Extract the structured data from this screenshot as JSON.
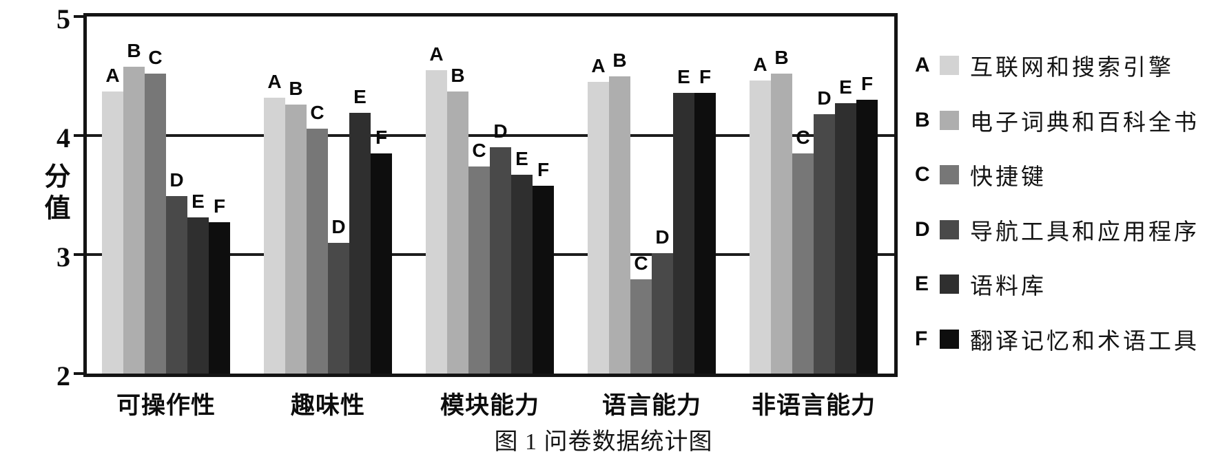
{
  "figure": {
    "caption": "图 1 问卷数据统计图"
  },
  "chart_data": {
    "type": "bar",
    "title": "",
    "xlabel": "",
    "ylabel": "分值",
    "ylim": [
      2,
      5
    ],
    "y_ticks": [
      5,
      4,
      3,
      2
    ],
    "gridlines_at": [
      4,
      3
    ],
    "grid": true,
    "legend_position": "right",
    "categories": [
      "可操作性",
      "趣味性",
      "模块能力",
      "语言能力",
      "非语言能力"
    ],
    "series": [
      {
        "key": "A",
        "name": "互联网和搜索引擎",
        "color": "#d3d3d3",
        "values": [
          4.37,
          4.32,
          4.55,
          4.45,
          4.46
        ]
      },
      {
        "key": "B",
        "name": "电子词典和百科全书",
        "color": "#aeaeae",
        "values": [
          4.58,
          4.26,
          4.37,
          4.5,
          4.52
        ]
      },
      {
        "key": "C",
        "name": "快捷键",
        "color": "#777777",
        "values": [
          4.52,
          4.06,
          3.74,
          2.79,
          3.85
        ]
      },
      {
        "key": "D",
        "name": "导航工具和应用程序",
        "color": "#494949",
        "values": [
          3.49,
          3.1,
          3.9,
          3.01,
          4.18
        ]
      },
      {
        "key": "E",
        "name": "语料库",
        "color": "#2f2f2f",
        "values": [
          3.31,
          4.19,
          3.67,
          4.36,
          4.27
        ]
      },
      {
        "key": "F",
        "name": "翻译记忆和术语工具",
        "color": "#0e0e0e",
        "values": [
          3.27,
          3.85,
          3.58,
          4.36,
          4.3
        ]
      }
    ],
    "axis_color": "#141414"
  }
}
